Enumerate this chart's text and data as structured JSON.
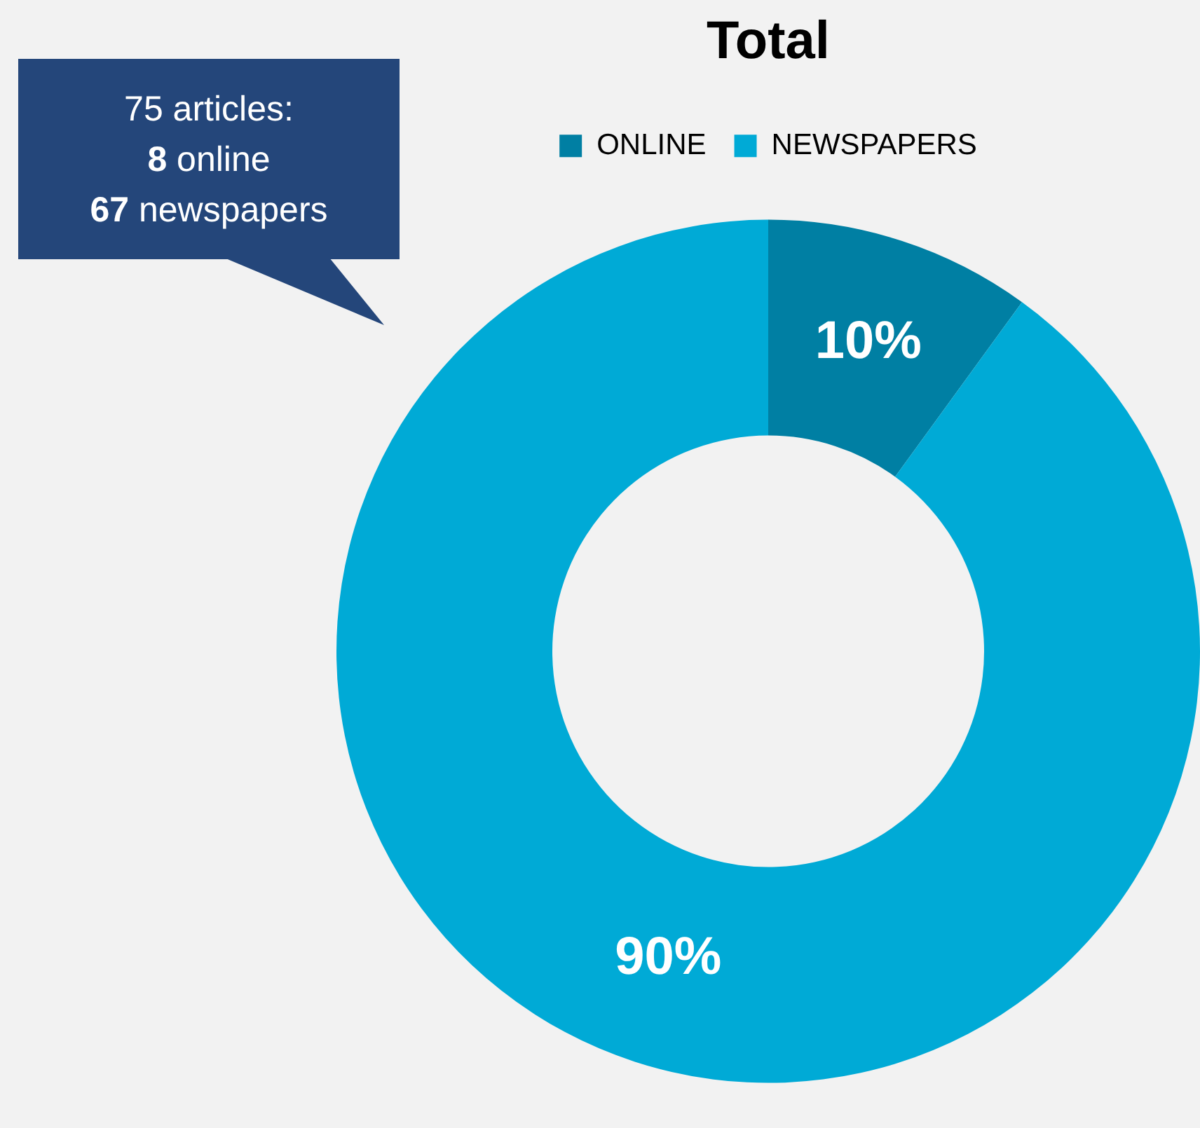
{
  "chart_data": {
    "type": "donut",
    "title": "Total",
    "categories": [
      "ONLINE",
      "NEWSPAPERS"
    ],
    "values": [
      10,
      90
    ],
    "colors": [
      "#007fa3",
      "#00aad6"
    ],
    "value_labels": [
      "10%",
      "90%"
    ],
    "legend": "top",
    "annotations": [
      "75 articles:",
      "8 online",
      "67 newspapers"
    ]
  }
}
